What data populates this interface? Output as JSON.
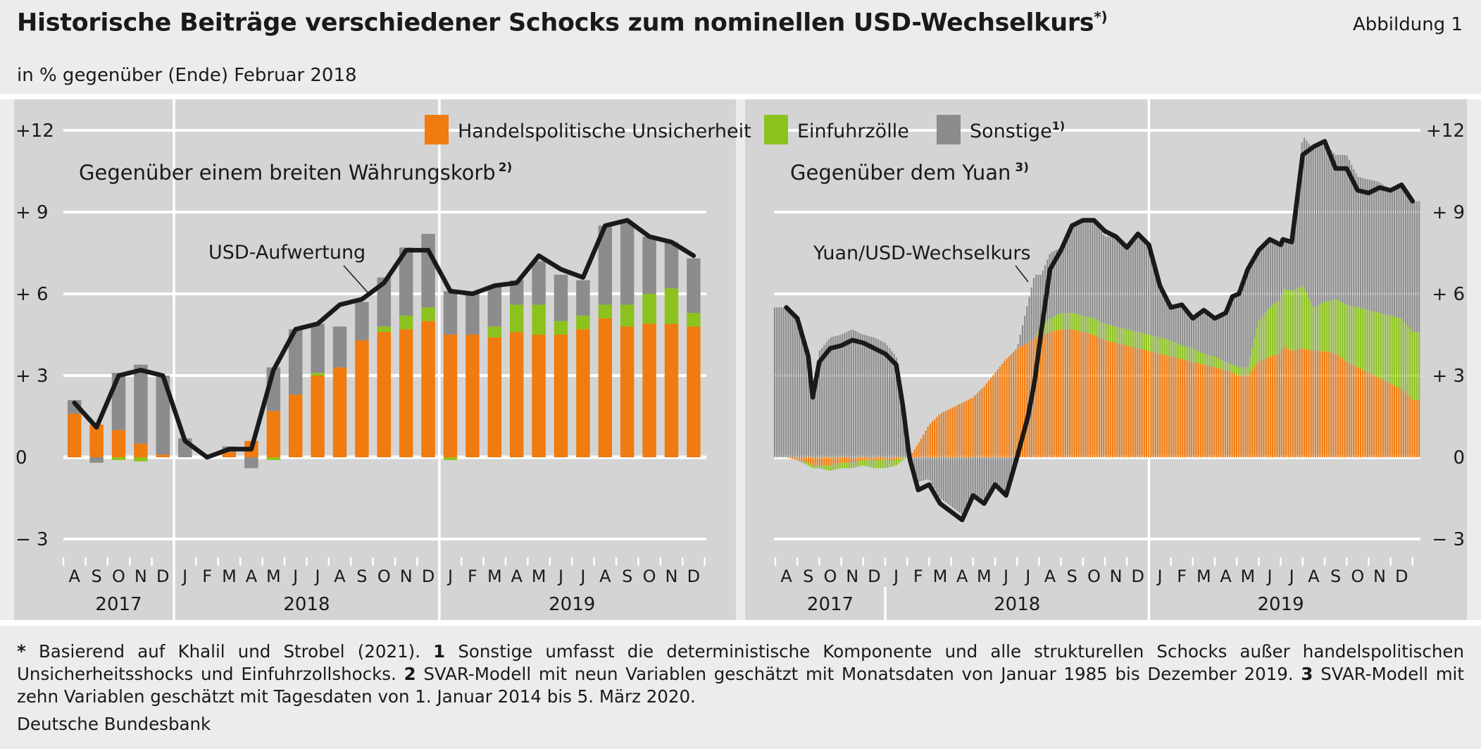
{
  "header": {
    "title": "Historische Beiträge verschiedener Schocks zum nominellen USD-Wechselkurs",
    "title_sup": "*)",
    "figure_label": "Abbildung 1",
    "subtitle": "in % gegenüber (Ende) Februar 2018"
  },
  "legend": [
    {
      "name": "Handelspolitische Unsicherheit",
      "sup": "",
      "color": "#f07b0e"
    },
    {
      "name": "Einfuhrzölle",
      "sup": "",
      "color": "#8cc21d"
    },
    {
      "name": "Sonstige",
      "sup": "1)",
      "color": "#8c8c8c"
    }
  ],
  "colors": {
    "background": "#ececec",
    "plot_background": "#d4d4d4",
    "gridline": "#ffffff",
    "line": "#1a1a1a",
    "orange": "#f07b0e",
    "green": "#8cc21d",
    "gray": "#8c8c8c"
  },
  "y_axis": {
    "ticks": [
      12,
      9,
      6,
      3,
      0,
      -3
    ],
    "labels": [
      "+12",
      "+ 9",
      "+ 6",
      "+ 3",
      "0",
      "− 3"
    ],
    "ylim": [
      -3,
      12
    ]
  },
  "chart_data": [
    {
      "type": "bar",
      "title": "Gegenüber einem breiten Währungskorb",
      "title_sup": "2)",
      "line_label": "USD-Aufwertung",
      "ylim": [
        -3,
        12
      ],
      "categories": [
        "A",
        "S",
        "O",
        "N",
        "D",
        "J",
        "F",
        "M",
        "A",
        "M",
        "J",
        "J",
        "A",
        "S",
        "O",
        "N",
        "D",
        "J",
        "F",
        "M",
        "A",
        "M",
        "J",
        "J",
        "A",
        "S",
        "O",
        "N",
        "D"
      ],
      "years": [
        {
          "label": "2017",
          "from": 0,
          "to": 4
        },
        {
          "label": "2018",
          "from": 5,
          "to": 16
        },
        {
          "label": "2019",
          "from": 17,
          "to": 28
        }
      ],
      "series": [
        {
          "name": "Handelspolitische Unsicherheit",
          "values": [
            1.6,
            1.2,
            1.0,
            0.5,
            0.1,
            0.0,
            0.0,
            0.2,
            0.6,
            1.7,
            2.3,
            3.0,
            3.3,
            4.3,
            4.6,
            4.7,
            5.0,
            4.5,
            4.5,
            4.4,
            4.6,
            4.5,
            4.5,
            4.7,
            5.1,
            4.8,
            4.9,
            4.9,
            4.8
          ]
        },
        {
          "name": "Einfuhrzölle",
          "values": [
            0.0,
            0.0,
            -0.1,
            -0.15,
            0.0,
            0.0,
            0.0,
            0.0,
            0.0,
            -0.1,
            0.0,
            0.1,
            0.0,
            0.0,
            0.2,
            0.5,
            0.5,
            -0.1,
            0.0,
            0.4,
            1.0,
            1.1,
            0.5,
            0.5,
            0.5,
            0.8,
            1.1,
            1.3,
            0.5
          ]
        },
        {
          "name": "Sonstige",
          "values": [
            0.5,
            -0.2,
            2.1,
            2.9,
            2.9,
            0.7,
            0.0,
            0.2,
            -0.4,
            1.6,
            2.4,
            1.8,
            1.5,
            1.4,
            1.8,
            2.5,
            2.7,
            1.6,
            1.5,
            1.5,
            0.9,
            1.6,
            1.7,
            1.3,
            2.9,
            3.0,
            2.1,
            1.7,
            2.0
          ]
        }
      ],
      "line": {
        "name": "USD-Aufwertung",
        "values": [
          2.0,
          1.1,
          3.0,
          3.2,
          3.0,
          0.6,
          0.0,
          0.3,
          0.3,
          3.2,
          4.7,
          4.9,
          5.6,
          5.8,
          6.4,
          7.6,
          7.6,
          6.1,
          6.0,
          6.3,
          6.4,
          7.4,
          6.9,
          6.6,
          8.5,
          8.7,
          8.1,
          7.9,
          7.4
        ]
      }
    },
    {
      "type": "area",
      "title": "Gegenüber dem Yuan",
      "title_sup": "3)",
      "line_label": "Yuan / USD-Wechselkurs",
      "ylim": [
        -3,
        12
      ],
      "categories": [
        "A",
        "S",
        "O",
        "N",
        "D",
        "J",
        "F",
        "M",
        "A",
        "M",
        "J",
        "J",
        "A",
        "S",
        "O",
        "N",
        "D",
        "J",
        "F",
        "M",
        "A",
        "M",
        "J",
        "J",
        "A",
        "S",
        "O",
        "N",
        "D"
      ],
      "years": [
        {
          "label": "2017",
          "from": 0,
          "to": 4
        },
        {
          "label": "2018",
          "from": 5,
          "to": 16
        },
        {
          "label": "2019",
          "from": 17,
          "to": 28
        }
      ],
      "x": [
        0.0,
        0.5,
        1.0,
        1.2,
        1.5,
        2.0,
        2.5,
        3.0,
        3.5,
        4.0,
        4.5,
        5.0,
        5.3,
        5.6,
        6.0,
        6.5,
        7.0,
        7.5,
        8.0,
        8.5,
        9.0,
        9.5,
        10.0,
        10.5,
        11.0,
        11.3,
        11.6,
        12.0,
        12.5,
        13.0,
        13.5,
        14.0,
        14.5,
        15.0,
        15.5,
        16.0,
        16.5,
        17.0,
        17.5,
        18.0,
        18.5,
        19.0,
        19.5,
        20.0,
        20.3,
        20.6,
        21.0,
        21.5,
        22.0,
        22.5,
        22.6,
        23.0,
        23.5,
        24.0,
        24.5,
        25.0,
        25.5,
        26.0,
        26.5,
        27.0,
        27.5,
        28.0,
        28.5
      ],
      "series": [
        {
          "name": "Handelspolitische Unsicherheit",
          "values": [
            0.0,
            -0.1,
            -0.2,
            -0.3,
            -0.3,
            -0.3,
            -0.2,
            -0.2,
            -0.1,
            -0.1,
            -0.1,
            -0.1,
            0.0,
            0.0,
            0.5,
            1.2,
            1.6,
            1.8,
            2.0,
            2.2,
            2.6,
            3.1,
            3.6,
            4.0,
            4.2,
            4.4,
            4.5,
            4.6,
            4.7,
            4.7,
            4.6,
            4.5,
            4.3,
            4.2,
            4.1,
            4.0,
            3.9,
            3.8,
            3.7,
            3.6,
            3.5,
            3.4,
            3.3,
            3.2,
            3.1,
            3.0,
            3.0,
            3.5,
            3.7,
            3.8,
            4.1,
            3.9,
            4.0,
            3.9,
            3.9,
            3.8,
            3.5,
            3.3,
            3.1,
            2.9,
            2.7,
            2.5,
            2.1
          ]
        },
        {
          "name": "Einfuhrzölle",
          "values": [
            0.0,
            0.0,
            -0.1,
            -0.1,
            -0.1,
            -0.2,
            -0.2,
            -0.2,
            -0.2,
            -0.3,
            -0.3,
            -0.2,
            -0.1,
            0.0,
            0.0,
            0.0,
            0.0,
            0.0,
            0.0,
            0.0,
            0.0,
            0.0,
            0.0,
            0.0,
            0.0,
            0.0,
            0.3,
            0.5,
            0.6,
            0.6,
            0.6,
            0.6,
            0.6,
            0.6,
            0.6,
            0.6,
            0.6,
            0.6,
            0.6,
            0.5,
            0.5,
            0.4,
            0.4,
            0.3,
            0.3,
            0.3,
            0.3,
            1.5,
            1.8,
            2.0,
            2.1,
            2.2,
            2.3,
            1.6,
            1.8,
            2.0,
            2.1,
            2.2,
            2.3,
            2.4,
            2.5,
            2.6,
            2.5
          ]
        },
        {
          "name": "Sonstige",
          "values": [
            5.5,
            5.2,
            4.0,
            2.6,
            3.9,
            4.4,
            4.5,
            4.7,
            4.5,
            4.4,
            4.2,
            3.7,
            2.0,
            0.0,
            -0.9,
            -0.8,
            -1.5,
            -1.8,
            -2.1,
            -1.3,
            -1.6,
            -0.9,
            -1.3,
            0.0,
            1.5,
            2.3,
            1.9,
            2.4,
            2.4,
            3.3,
            3.5,
            3.6,
            3.2,
            3.3,
            3.0,
            3.6,
            3.3,
            1.9,
            1.2,
            1.5,
            1.1,
            1.5,
            1.3,
            1.8,
            2.5,
            2.7,
            3.6,
            2.6,
            2.6,
            2.0,
            1.8,
            1.8,
            5.5,
            5.8,
            5.8,
            5.3,
            5.5,
            4.8,
            4.8,
            4.8,
            4.6,
            4.9,
            4.8
          ]
        }
      ],
      "line": {
        "name": "Yuan / USD-Wechselkurs",
        "values": [
          5.5,
          5.1,
          3.7,
          2.2,
          3.5,
          4.0,
          4.1,
          4.3,
          4.2,
          4.0,
          3.8,
          3.4,
          1.9,
          0.0,
          -1.2,
          -1.0,
          -1.7,
          -2.0,
          -2.3,
          -1.4,
          -1.7,
          -1.0,
          -1.4,
          0.0,
          1.5,
          2.8,
          4.6,
          6.9,
          7.6,
          8.5,
          8.7,
          8.7,
          8.3,
          8.1,
          7.7,
          8.2,
          7.8,
          6.3,
          5.5,
          5.6,
          5.1,
          5.4,
          5.1,
          5.3,
          5.9,
          6.0,
          6.9,
          7.6,
          8.0,
          7.8,
          8.0,
          7.9,
          11.1,
          11.4,
          11.6,
          10.6,
          10.6,
          9.8,
          9.7,
          9.9,
          9.8,
          10.0,
          9.4
        ]
      }
    }
  ],
  "notes": {
    "star": "*",
    "star_text": " Basierend auf Khalil und Strobel (2021). ",
    "n1": "1",
    "n1_text": " Sonstige umfasst die deterministische Komponente und alle strukturellen Schocks außer handelspolitischen Unsicherheitsshocks und Einfuhrzollshocks. ",
    "n2": "2",
    "n2_text": " SVAR-Modell mit neun Variablen geschätzt mit Monatsdaten von Januar 1985 bis Dezember 2019. ",
    "n3": "3",
    "n3_text": " SVAR-Modell mit zehn Variablen geschätzt mit Tagesdaten von 1. Januar 2014 bis 5. März 2020."
  },
  "source": "Deutsche Bundesbank"
}
